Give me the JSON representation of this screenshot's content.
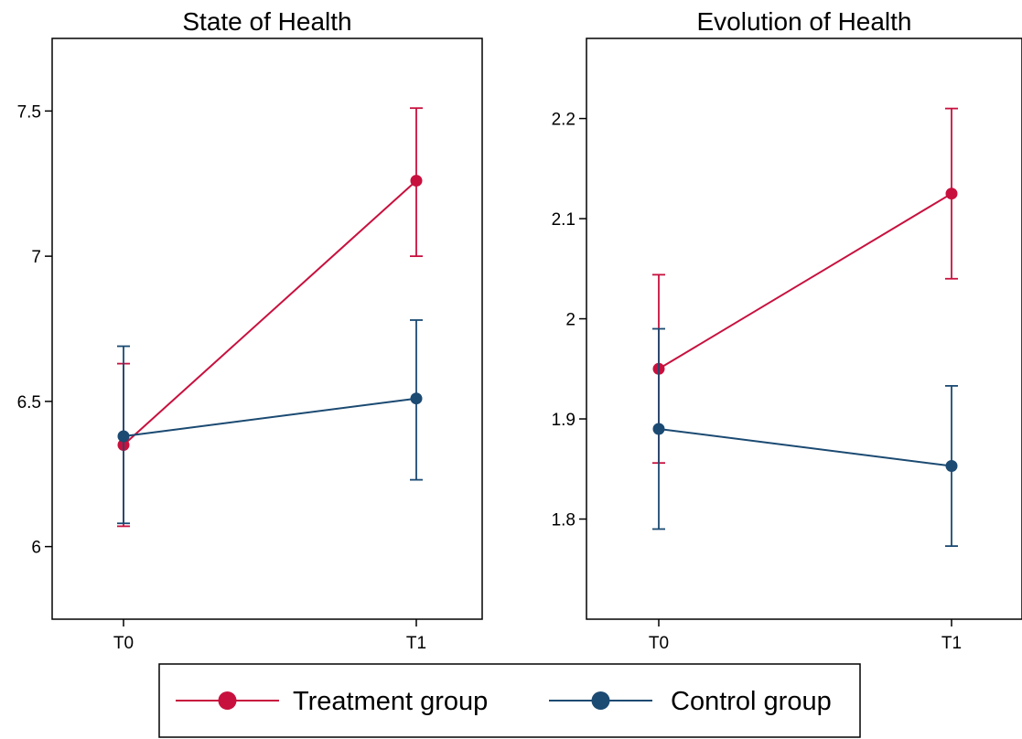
{
  "colors": {
    "treatment": "#c8103e",
    "control": "#1b4a72",
    "frame": "#000000",
    "background": "#ffffff"
  },
  "legend": {
    "placement": "bottom-center",
    "items": [
      {
        "name": "Treatment group",
        "color": "#c8103e"
      },
      {
        "name": "Control group",
        "color": "#1b4a72"
      }
    ]
  },
  "chart_data": [
    {
      "type": "line",
      "title": "State of Health",
      "xlabel": "",
      "ylabel": "",
      "categories": [
        "T0",
        "T1"
      ],
      "ylim": [
        5.75,
        7.75
      ],
      "yticks": [
        6,
        6.5,
        7,
        7.5
      ],
      "ytick_labels": [
        "6",
        "6.5",
        "7",
        "7.5"
      ],
      "grid": false,
      "series": [
        {
          "name": "Treatment group",
          "values": [
            6.35,
            7.26
          ],
          "ci_low": [
            6.07,
            7.0
          ],
          "ci_high": [
            6.63,
            7.51
          ]
        },
        {
          "name": "Control group",
          "values": [
            6.38,
            6.51
          ],
          "ci_low": [
            6.08,
            6.23
          ],
          "ci_high": [
            6.69,
            6.78
          ]
        }
      ]
    },
    {
      "type": "line",
      "title": "Evolution of Health",
      "xlabel": "",
      "ylabel": "",
      "categories": [
        "T0",
        "T1"
      ],
      "ylim": [
        1.7,
        2.28
      ],
      "yticks": [
        1.8,
        1.9,
        2.0,
        2.1,
        2.2
      ],
      "ytick_labels": [
        "1.8",
        "1.9",
        "2",
        "2.1",
        "2.2"
      ],
      "grid": false,
      "series": [
        {
          "name": "Treatment group",
          "values": [
            1.95,
            2.125
          ],
          "ci_low": [
            1.856,
            2.04
          ],
          "ci_high": [
            2.044,
            2.21
          ]
        },
        {
          "name": "Control group",
          "values": [
            1.89,
            1.853
          ],
          "ci_low": [
            1.79,
            1.773
          ],
          "ci_high": [
            1.99,
            1.933
          ]
        }
      ]
    }
  ]
}
